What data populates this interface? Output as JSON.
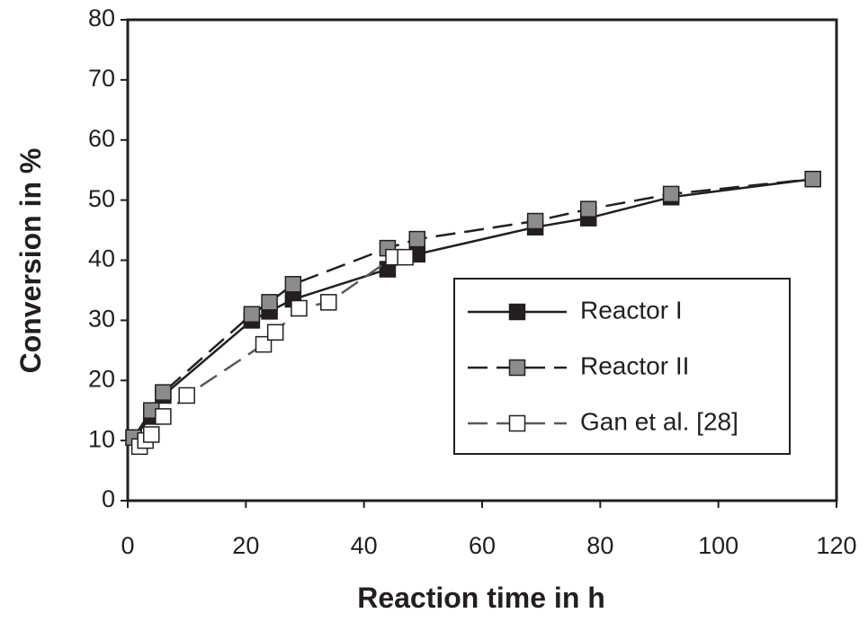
{
  "chart_data": {
    "type": "line",
    "x_label": "Reaction time in  h",
    "y_label": "Conversion in %",
    "xlim": [
      0,
      120
    ],
    "xticks": [
      0,
      20,
      40,
      60,
      80,
      100,
      120
    ],
    "ylim": [
      0,
      80
    ],
    "yticks": [
      0,
      10,
      20,
      30,
      40,
      50,
      60,
      70,
      80
    ],
    "legend": "right",
    "series": [
      {
        "name": "Reactor  I",
        "color": "#231f20",
        "marker_fill": "#231f20",
        "dash": "solid",
        "x": [
          1,
          4,
          6,
          21,
          24,
          28,
          44,
          49,
          69,
          78,
          92,
          116
        ],
        "values": [
          10.5,
          14,
          17.5,
          30,
          31.5,
          33.5,
          38.5,
          41,
          45.5,
          47,
          50.5,
          53.5
        ]
      },
      {
        "name": "Reactor II",
        "color": "#231f20",
        "marker_fill": "#8c8c8e",
        "dash": "dashed",
        "x": [
          1,
          4,
          6,
          21,
          24,
          28,
          44,
          49,
          69,
          78,
          92,
          116
        ],
        "values": [
          10.5,
          15,
          18,
          31,
          33,
          36,
          42,
          43.5,
          46.5,
          48.5,
          51,
          53.5
        ]
      },
      {
        "name": "Gan et al. [28]",
        "color": "#58595b",
        "marker_fill": "#ffffff",
        "dash": "dashed",
        "x": [
          2,
          3,
          4,
          6,
          10,
          23,
          25,
          29,
          34,
          45,
          47
        ],
        "values": [
          9,
          10,
          11,
          14,
          17.5,
          26,
          28,
          32,
          33,
          40.5,
          40.5
        ]
      }
    ]
  }
}
